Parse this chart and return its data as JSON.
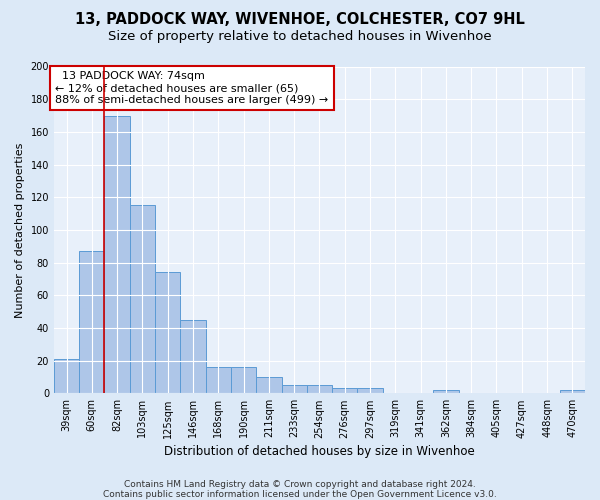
{
  "title1": "13, PADDOCK WAY, WIVENHOE, COLCHESTER, CO7 9HL",
  "title2": "Size of property relative to detached houses in Wivenhoe",
  "xlabel": "Distribution of detached houses by size in Wivenhoe",
  "ylabel": "Number of detached properties",
  "categories": [
    "39sqm",
    "60sqm",
    "82sqm",
    "103sqm",
    "125sqm",
    "146sqm",
    "168sqm",
    "190sqm",
    "211sqm",
    "233sqm",
    "254sqm",
    "276sqm",
    "297sqm",
    "319sqm",
    "341sqm",
    "362sqm",
    "384sqm",
    "405sqm",
    "427sqm",
    "448sqm",
    "470sqm"
  ],
  "values": [
    21,
    87,
    170,
    115,
    74,
    45,
    16,
    16,
    10,
    5,
    5,
    3,
    3,
    0,
    0,
    2,
    0,
    0,
    0,
    0,
    2
  ],
  "bar_color": "#aec6e8",
  "bar_edge_color": "#5b9bd5",
  "background_color": "#dce9f7",
  "plot_bg_color": "#e8f0fa",
  "annotation_text": "  13 PADDOCK WAY: 74sqm\n← 12% of detached houses are smaller (65)\n88% of semi-detached houses are larger (499) →",
  "annotation_box_color": "#ffffff",
  "annotation_box_edge": "#cc0000",
  "ylim": [
    0,
    200
  ],
  "yticks": [
    0,
    20,
    40,
    60,
    80,
    100,
    120,
    140,
    160,
    180,
    200
  ],
  "footer1": "Contains HM Land Registry data © Crown copyright and database right 2024.",
  "footer2": "Contains public sector information licensed under the Open Government Licence v3.0.",
  "title1_fontsize": 10.5,
  "title2_fontsize": 9.5,
  "annotation_fontsize": 8,
  "tick_fontsize": 7,
  "xlabel_fontsize": 8.5,
  "ylabel_fontsize": 8,
  "footer_fontsize": 6.5
}
